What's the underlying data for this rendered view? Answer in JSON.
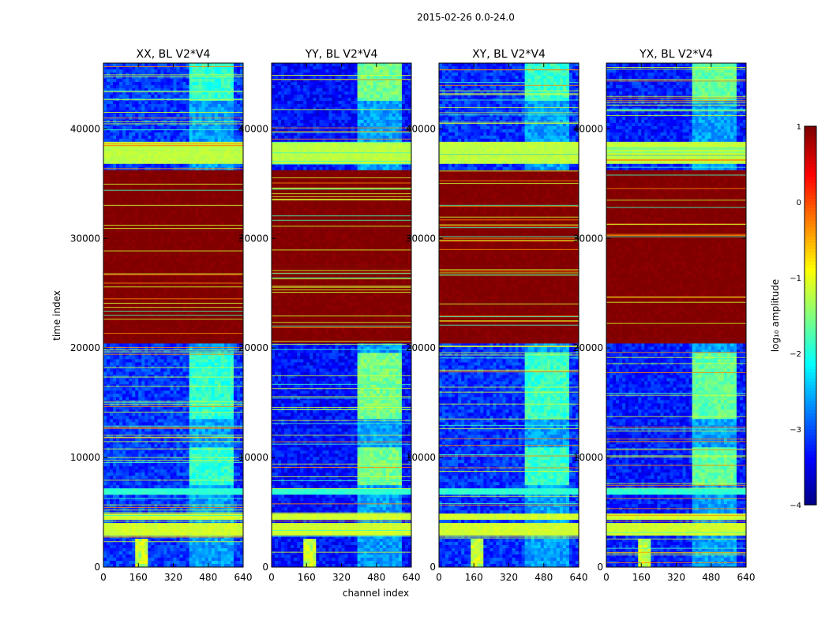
{
  "suptitle": "2015-02-26 0.0-24.0",
  "ylabel": "time index",
  "xlabel": "channel index",
  "chart_data": {
    "type": "heatmap",
    "x_range": [
      0,
      640
    ],
    "y_range": [
      0,
      46000
    ],
    "x_ticks": [
      0,
      160,
      320,
      480,
      640
    ],
    "y_ticks": [
      0,
      10000,
      20000,
      30000,
      40000
    ],
    "x_tick_labels": [
      "0",
      "160",
      "320",
      "480",
      "640"
    ],
    "y_tick_labels": [
      "0",
      "10000",
      "20000",
      "30000",
      "40000"
    ],
    "panels": [
      {
        "title": "XX, BL V2*V4",
        "pol": "XX",
        "bright_boost": 0.0
      },
      {
        "title": "YY, BL V2*V4",
        "pol": "YY",
        "bright_boost": 0.35
      },
      {
        "title": "XY, BL V2*V4",
        "pol": "XY",
        "bright_boost": 0.05
      },
      {
        "title": "YX, BL V2*V4",
        "pol": "YX",
        "bright_boost": 0.25
      }
    ],
    "bands": [
      {
        "from": 20500,
        "to": 36200,
        "level": 1.0,
        "label": "saturated rows"
      },
      {
        "from": 36800,
        "to": 38700,
        "level": -1.2,
        "label": "flat band"
      },
      {
        "from": 3000,
        "to": 3900,
        "level": -1.1,
        "label": "flat band"
      },
      {
        "from": 4300,
        "to": 5000,
        "level": -1.1,
        "label": "flat band"
      },
      {
        "from": 6500,
        "to": 7200,
        "level": -1.9,
        "label": "flat band"
      }
    ],
    "hot_channels": {
      "from": 400,
      "to": 600
    },
    "colorbar": {
      "label": "log₁₀ amplitude",
      "min": -4,
      "max": 1,
      "ticks": [
        1,
        0,
        -1,
        -2,
        -3,
        -4
      ],
      "tick_labels": [
        "1",
        "0",
        "−1",
        "−2",
        "−3",
        "−4"
      ],
      "colormap": "jet"
    }
  }
}
